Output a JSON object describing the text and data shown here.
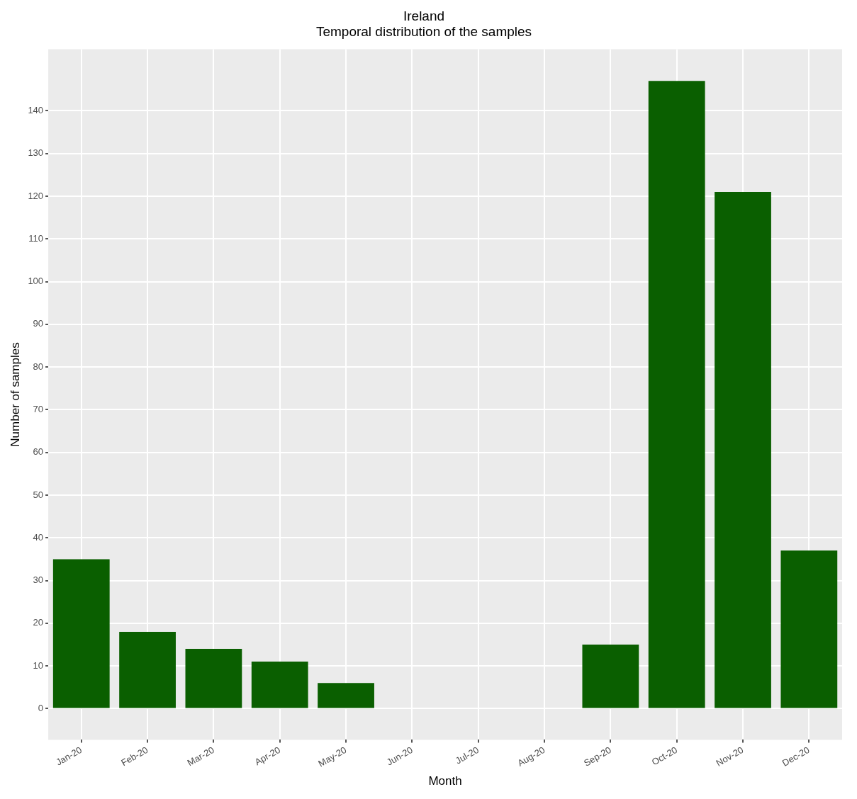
{
  "chart_data": {
    "type": "bar",
    "title": "Ireland",
    "subtitle": "Temporal distribution of the samples",
    "xlabel": "Month",
    "ylabel": "Number of samples",
    "categories": [
      "Jan-20",
      "Feb-20",
      "Mar-20",
      "Apr-20",
      "May-20",
      "Jun-20",
      "Jul-20",
      "Aug-20",
      "Sep-20",
      "Oct-20",
      "Nov-20",
      "Dec-20"
    ],
    "values": [
      35,
      18,
      14,
      11,
      6,
      null,
      null,
      null,
      15,
      147,
      121,
      37
    ],
    "color": "#0a5f00",
    "ylim": [
      -7.3,
      154.4
    ],
    "yticks": [
      0,
      10,
      20,
      30,
      40,
      50,
      60,
      70,
      80,
      90,
      100,
      110,
      120,
      130,
      140
    ],
    "grid": true,
    "legend": false
  }
}
